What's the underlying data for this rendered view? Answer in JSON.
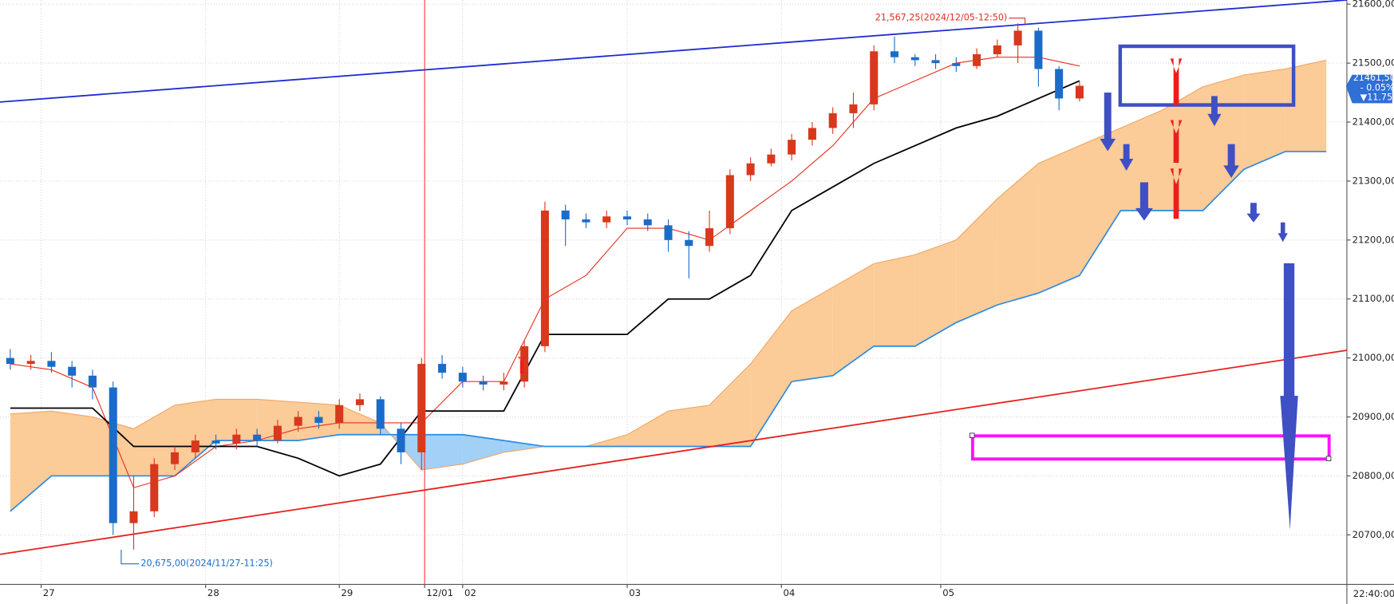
{
  "chart_data": {
    "type": "candlestick",
    "x": [
      0,
      2,
      4,
      6,
      8,
      10,
      12,
      14,
      16,
      18,
      20,
      22,
      24,
      26,
      28,
      30,
      32,
      34,
      36,
      38,
      40,
      42,
      44,
      46,
      48,
      50,
      52,
      54,
      56,
      58,
      60,
      62,
      64,
      66,
      68,
      70,
      72,
      74,
      76,
      78,
      80,
      82,
      84,
      86,
      88,
      90,
      92,
      94,
      96,
      98,
      100,
      102,
      104
    ],
    "open": [
      21000,
      20990,
      20995,
      20985,
      20970,
      20950,
      20720,
      20740,
      20820,
      20840,
      20860,
      20855,
      20870,
      20860,
      20885,
      20900,
      20890,
      20920,
      20930,
      20880,
      20840,
      20990,
      20975,
      20960,
      20955,
      20960,
      21020,
      21250,
      21235,
      21230,
      21240,
      21235,
      21225,
      21200,
      21190,
      21220,
      21310,
      21330,
      21345,
      21370,
      21390,
      21415,
      21430,
      21520,
      21510,
      21505,
      21500,
      21495,
      21515,
      21530,
      21555,
      21490,
      21440
    ],
    "high": [
      21015,
      21005,
      21010,
      20995,
      20980,
      20960,
      20800,
      20830,
      20850,
      20870,
      20870,
      20880,
      20880,
      20895,
      20910,
      20910,
      20930,
      20940,
      20935,
      20890,
      21000,
      21005,
      20985,
      20970,
      20975,
      21030,
      21265,
      21260,
      21245,
      21250,
      21250,
      21245,
      21235,
      21215,
      21250,
      21320,
      21340,
      21355,
      21380,
      21400,
      21425,
      21450,
      21530,
      21545,
      21515,
      21515,
      21510,
      21525,
      21540,
      21567.25,
      21560,
      21495,
      21470
    ],
    "low": [
      20980,
      20980,
      20975,
      20950,
      20930,
      20700,
      20675,
      20730,
      20810,
      20830,
      20845,
      20845,
      20850,
      20855,
      20875,
      20880,
      20880,
      20910,
      20870,
      20820,
      20810,
      20965,
      20950,
      20945,
      20945,
      20950,
      21010,
      21190,
      21220,
      21220,
      21225,
      21215,
      21180,
      21135,
      21180,
      21210,
      21300,
      21325,
      21335,
      21360,
      21380,
      21390,
      21420,
      21500,
      21495,
      21490,
      21485,
      21490,
      21510,
      21500,
      21460,
      21420,
      21435
    ],
    "close": [
      20990,
      20995,
      20985,
      20970,
      20950,
      20720,
      20740,
      20820,
      20840,
      20860,
      20855,
      20870,
      20860,
      20885,
      20900,
      20890,
      20920,
      20930,
      20880,
      20840,
      20990,
      20975,
      20960,
      20955,
      20960,
      21020,
      21250,
      21235,
      21230,
      21240,
      21235,
      21225,
      21200,
      21190,
      21220,
      21310,
      21330,
      21345,
      21370,
      21390,
      21415,
      21430,
      21520,
      21510,
      21505,
      21500,
      21495,
      21515,
      21530,
      21555,
      21490,
      21440,
      21461.5
    ],
    "up_color": "#d8381d",
    "down_color": "#1b6cc8",
    "lines": [
      {
        "color": "#e8301f",
        "width": 1,
        "x": [
          0,
          4,
          8,
          12,
          16,
          20,
          24,
          28,
          32,
          36,
          40,
          44,
          48,
          52,
          56,
          60,
          64,
          68,
          72,
          76,
          80,
          84,
          88,
          92,
          96,
          100,
          104
        ],
        "values": [
          20990,
          20980,
          20950,
          20780,
          20800,
          20850,
          20860,
          20880,
          20890,
          20890,
          20890,
          20960,
          20960,
          21100,
          21140,
          21220,
          21220,
          21200,
          21250,
          21300,
          21360,
          21440,
          21470,
          21500,
          21510,
          21510,
          21495
        ]
      },
      {
        "color": "#000000",
        "width": 1.6,
        "x": [
          0,
          4,
          8,
          12,
          16,
          20,
          24,
          28,
          32,
          36,
          40,
          44,
          48,
          52,
          56,
          60,
          64,
          68,
          72,
          76,
          80,
          84,
          88,
          92,
          96,
          100,
          104
        ],
        "values": [
          20915,
          20915,
          20915,
          20850,
          20850,
          20850,
          20850,
          20830,
          20800,
          20820,
          20910,
          20910,
          20910,
          21040,
          21040,
          21040,
          21100,
          21100,
          21140,
          21250,
          21290,
          21330,
          21360,
          21390,
          21410,
          21440,
          21470
        ]
      }
    ],
    "cloud": {
      "x": [
        0,
        4,
        8,
        12,
        16,
        20,
        24,
        28,
        32,
        36,
        40,
        44,
        48,
        52,
        56,
        60,
        64,
        68,
        72,
        76,
        80,
        84,
        88,
        92,
        96,
        100,
        104,
        108,
        112,
        116,
        120,
        124,
        128
      ],
      "span_a": [
        20905,
        20910,
        20900,
        20880,
        20920,
        20930,
        20930,
        20925,
        20920,
        20890,
        20810,
        20820,
        20840,
        20850,
        20850,
        20870,
        20910,
        20920,
        20990,
        21080,
        21120,
        21160,
        21175,
        21200,
        21270,
        21330,
        21360,
        21390,
        21420,
        21460,
        21480,
        21490,
        21505
      ],
      "span_b": [
        20740,
        20800,
        20800,
        20800,
        20800,
        20860,
        20860,
        20860,
        20870,
        20870,
        20870,
        20870,
        20860,
        20850,
        20850,
        20850,
        20850,
        20850,
        20850,
        20960,
        20970,
        21020,
        21020,
        21060,
        21090,
        21110,
        21140,
        21250,
        21250,
        21250,
        21320,
        21350,
        21350
      ],
      "up_color": "#fbcb98",
      "down_color": "#a3d0f7",
      "a_color": "#f2a766",
      "b_color": "#2b8be2"
    },
    "trend_lines": [
      {
        "color": "#1f2bd1",
        "x": [
          -1,
          130
        ],
        "values": [
          21434,
          21607
        ]
      },
      {
        "color": "#e5201c",
        "x": [
          -1,
          130
        ],
        "values": [
          20667,
          21013
        ]
      }
    ],
    "vlines": [
      {
        "x": 40.3,
        "color": "#ff3b3b"
      }
    ],
    "annotations": [
      {
        "text": "21,567,25(2024/12/05-12:50)",
        "color": "#e0301e"
      },
      {
        "text": "20,675,00(2024/11/27-11:25)",
        "color": "#1b6cc8"
      }
    ],
    "price_label": {
      "price": "21461,50",
      "change": "- 0.05%",
      "delta": "▼11.75"
    },
    "time_label": "22:40:00",
    "xlim": [
      -1,
      130
    ],
    "ylim": [
      20616,
      21607
    ],
    "xticks": [
      {
        "value": 3,
        "label": "27"
      },
      {
        "value": 19,
        "label": "28"
      },
      {
        "value": 32,
        "label": "29"
      },
      {
        "value": 40.3,
        "label": "12/01"
      },
      {
        "value": 44,
        "label": "02"
      },
      {
        "value": 60,
        "label": "03"
      },
      {
        "value": 75,
        "label": "04"
      },
      {
        "value": 90.5,
        "label": "05"
      }
    ],
    "yticks": [
      {
        "value": 21600,
        "label": "21600,00"
      },
      {
        "value": 21500,
        "label": "21500,00"
      },
      {
        "value": 21400,
        "label": "21400,00"
      },
      {
        "value": 21300,
        "label": "21300,00"
      },
      {
        "value": 21200,
        "label": "21200,00"
      },
      {
        "value": 21100,
        "label": "21100,00"
      },
      {
        "value": 21000,
        "label": "21000,00"
      },
      {
        "value": 20900,
        "label": "20900,00"
      },
      {
        "value": 20800,
        "label": "20800,00"
      },
      {
        "value": 20700,
        "label": "20700,00"
      }
    ],
    "grid": true
  }
}
